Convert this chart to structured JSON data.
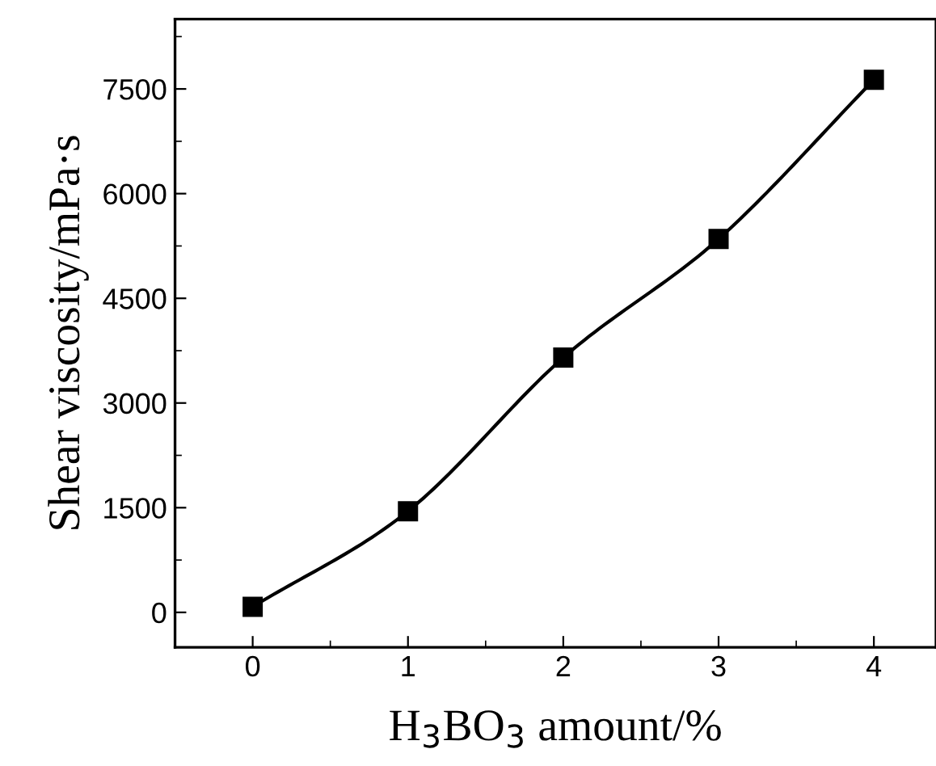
{
  "chart_data": {
    "type": "line",
    "xlabel": "H$_{3}$BO$_{3}$ amount/%",
    "ylabel": "Shear viscosity/mPa·s",
    "x": [
      0,
      1,
      2,
      3,
      4
    ],
    "series": [
      {
        "color": "#000000",
        "values": [
          80,
          1450,
          3650,
          5350,
          7630
        ]
      }
    ],
    "xlim": [
      -0.5,
      4.4
    ],
    "xticks": [
      0,
      1,
      2,
      3,
      4
    ],
    "ylim": [
      -500,
      8500
    ],
    "yticks": [
      0,
      1500,
      3000,
      4500,
      6000,
      7500
    ],
    "marker": "square",
    "line_style": "solid",
    "grid": false,
    "legend": false
  }
}
